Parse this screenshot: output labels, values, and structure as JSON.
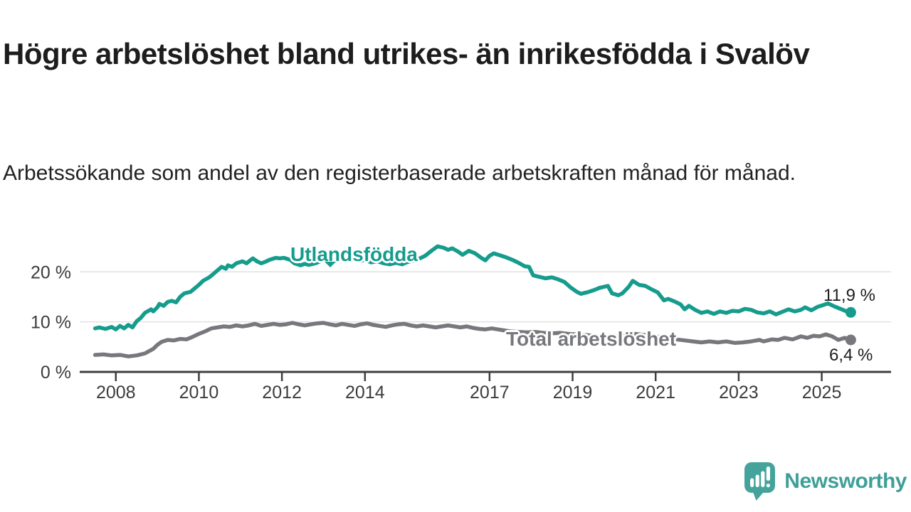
{
  "header": {
    "title": "Högre arbetslöshet bland utrikes- än inrikesfödda i Svalöv",
    "subtitle": "Arbetssökande som andel av den registerbaserade arbetskraften månad för månad."
  },
  "chart_data": {
    "type": "line",
    "title": "Högre arbetslöshet bland utrikes- än inrikesfödda i Svalöv",
    "xlabel": "",
    "ylabel": "Arbetssökande som andel av den registerbaserade arbetskraften",
    "xlim": [
      2007.13,
      2026.67
    ],
    "ylim": [
      0,
      27
    ],
    "grid": "horizontal",
    "grid_color": "#e1e1e1",
    "axis_color": "#3f3f3f",
    "axis_text_color": "#3c3c3c",
    "y_ticks": [
      {
        "value": 0,
        "label": "0 %"
      },
      {
        "value": 10,
        "label": "10 %"
      },
      {
        "value": 20,
        "label": "20 %"
      }
    ],
    "x_ticks": [
      {
        "value": 2008,
        "label": "2008"
      },
      {
        "value": 2010,
        "label": "2010"
      },
      {
        "value": 2012,
        "label": "2012"
      },
      {
        "value": 2014,
        "label": "2014"
      },
      {
        "value": 2017,
        "label": "2017"
      },
      {
        "value": 2019,
        "label": "2019"
      },
      {
        "value": 2021,
        "label": "2021"
      },
      {
        "value": 2023,
        "label": "2023"
      },
      {
        "value": 2025,
        "label": "2025"
      }
    ],
    "series": [
      {
        "name": "Utlandsfödda",
        "color": "#169c8d",
        "end_label": "11,9 %",
        "end_value": 11.9,
        "points": [
          [
            2007.5,
            8.7
          ],
          [
            2007.6,
            8.9
          ],
          [
            2007.75,
            8.6
          ],
          [
            2007.9,
            9.0
          ],
          [
            2008.0,
            8.5
          ],
          [
            2008.1,
            9.2
          ],
          [
            2008.2,
            8.7
          ],
          [
            2008.3,
            9.4
          ],
          [
            2008.4,
            8.9
          ],
          [
            2008.5,
            10.1
          ],
          [
            2008.6,
            10.8
          ],
          [
            2008.7,
            11.8
          ],
          [
            2008.85,
            12.5
          ],
          [
            2008.9,
            12.1
          ],
          [
            2009.0,
            12.9
          ],
          [
            2009.05,
            13.6
          ],
          [
            2009.15,
            13.2
          ],
          [
            2009.25,
            14.0
          ],
          [
            2009.35,
            14.2
          ],
          [
            2009.45,
            13.9
          ],
          [
            2009.55,
            15.0
          ],
          [
            2009.65,
            15.7
          ],
          [
            2009.8,
            16.0
          ],
          [
            2009.9,
            16.7
          ],
          [
            2010.0,
            17.4
          ],
          [
            2010.1,
            18.2
          ],
          [
            2010.25,
            18.9
          ],
          [
            2010.35,
            19.6
          ],
          [
            2010.45,
            20.3
          ],
          [
            2010.55,
            21.0
          ],
          [
            2010.65,
            20.6
          ],
          [
            2010.7,
            21.3
          ],
          [
            2010.8,
            21.0
          ],
          [
            2010.9,
            21.7
          ],
          [
            2011.05,
            22.1
          ],
          [
            2011.15,
            21.7
          ],
          [
            2011.25,
            22.4
          ],
          [
            2011.3,
            22.7
          ],
          [
            2011.4,
            22.1
          ],
          [
            2011.5,
            21.7
          ],
          [
            2011.6,
            22.0
          ],
          [
            2011.7,
            22.4
          ],
          [
            2011.85,
            22.8
          ],
          [
            2011.95,
            22.7
          ],
          [
            2012.05,
            22.8
          ],
          [
            2012.2,
            22.4
          ],
          [
            2012.3,
            21.7
          ],
          [
            2012.45,
            21.3
          ],
          [
            2012.55,
            21.6
          ],
          [
            2012.65,
            21.4
          ],
          [
            2012.8,
            21.7
          ],
          [
            2012.9,
            22.0
          ],
          [
            2013.0,
            22.3
          ],
          [
            2013.1,
            22.6
          ],
          [
            2013.2,
            22.9
          ],
          [
            2013.35,
            22.5
          ],
          [
            2013.5,
            22.7
          ],
          [
            2013.6,
            22.3
          ],
          [
            2013.75,
            22.5
          ],
          [
            2013.9,
            22.2
          ],
          [
            2014.0,
            22.4
          ],
          [
            2014.15,
            21.9
          ],
          [
            2014.3,
            22.1
          ],
          [
            2014.45,
            21.7
          ],
          [
            2014.6,
            21.5
          ],
          [
            2014.75,
            21.8
          ],
          [
            2014.9,
            21.5
          ],
          [
            2015.0,
            21.9
          ],
          [
            2015.15,
            22.2
          ],
          [
            2015.3,
            22.6
          ],
          [
            2015.45,
            23.2
          ],
          [
            2015.6,
            24.2
          ],
          [
            2015.75,
            25.1
          ],
          [
            2015.9,
            24.8
          ],
          [
            2016.0,
            24.4
          ],
          [
            2016.1,
            24.7
          ],
          [
            2016.25,
            24.0
          ],
          [
            2016.35,
            23.4
          ],
          [
            2016.5,
            24.2
          ],
          [
            2016.65,
            23.7
          ],
          [
            2016.8,
            22.8
          ],
          [
            2016.9,
            22.3
          ],
          [
            2017.0,
            23.2
          ],
          [
            2017.1,
            23.7
          ],
          [
            2017.25,
            23.3
          ],
          [
            2017.4,
            22.9
          ],
          [
            2017.55,
            22.4
          ],
          [
            2017.7,
            21.8
          ],
          [
            2017.85,
            21.1
          ],
          [
            2017.95,
            21.0
          ],
          [
            2018.05,
            19.3
          ],
          [
            2018.2,
            19.0
          ],
          [
            2018.35,
            18.7
          ],
          [
            2018.5,
            18.9
          ],
          [
            2018.65,
            18.5
          ],
          [
            2018.8,
            18.0
          ],
          [
            2018.95,
            16.9
          ],
          [
            2019.1,
            16.0
          ],
          [
            2019.2,
            15.6
          ],
          [
            2019.35,
            15.9
          ],
          [
            2019.5,
            16.3
          ],
          [
            2019.65,
            16.8
          ],
          [
            2019.85,
            17.2
          ],
          [
            2019.95,
            15.7
          ],
          [
            2020.1,
            15.3
          ],
          [
            2020.2,
            15.7
          ],
          [
            2020.35,
            17.0
          ],
          [
            2020.45,
            18.2
          ],
          [
            2020.6,
            17.4
          ],
          [
            2020.75,
            17.2
          ],
          [
            2020.9,
            16.5
          ],
          [
            2021.05,
            15.9
          ],
          [
            2021.2,
            14.3
          ],
          [
            2021.3,
            14.6
          ],
          [
            2021.45,
            14.1
          ],
          [
            2021.6,
            13.5
          ],
          [
            2021.7,
            12.5
          ],
          [
            2021.8,
            13.2
          ],
          [
            2021.95,
            12.4
          ],
          [
            2022.1,
            11.8
          ],
          [
            2022.25,
            12.1
          ],
          [
            2022.4,
            11.6
          ],
          [
            2022.55,
            12.1
          ],
          [
            2022.7,
            11.8
          ],
          [
            2022.85,
            12.2
          ],
          [
            2023.0,
            12.1
          ],
          [
            2023.15,
            12.6
          ],
          [
            2023.3,
            12.4
          ],
          [
            2023.45,
            11.9
          ],
          [
            2023.6,
            11.7
          ],
          [
            2023.75,
            12.1
          ],
          [
            2023.9,
            11.5
          ],
          [
            2024.05,
            12.0
          ],
          [
            2024.2,
            12.5
          ],
          [
            2024.35,
            12.1
          ],
          [
            2024.5,
            12.4
          ],
          [
            2024.6,
            12.9
          ],
          [
            2024.75,
            12.3
          ],
          [
            2024.9,
            13.0
          ],
          [
            2025.05,
            13.4
          ],
          [
            2025.15,
            13.7
          ],
          [
            2025.3,
            13.1
          ],
          [
            2025.45,
            12.6
          ],
          [
            2025.6,
            12.1
          ],
          [
            2025.7,
            11.9
          ]
        ]
      },
      {
        "name": "Total arbetslöshet",
        "color": "#77787c",
        "end_label": "6,4 %",
        "end_value": 6.4,
        "points": [
          [
            2007.5,
            3.4
          ],
          [
            2007.7,
            3.5
          ],
          [
            2007.9,
            3.3
          ],
          [
            2008.1,
            3.4
          ],
          [
            2008.3,
            3.1
          ],
          [
            2008.5,
            3.3
          ],
          [
            2008.7,
            3.7
          ],
          [
            2008.9,
            4.6
          ],
          [
            2009.0,
            5.4
          ],
          [
            2009.1,
            6.0
          ],
          [
            2009.25,
            6.4
          ],
          [
            2009.4,
            6.3
          ],
          [
            2009.55,
            6.6
          ],
          [
            2009.7,
            6.5
          ],
          [
            2009.85,
            7.0
          ],
          [
            2010.0,
            7.6
          ],
          [
            2010.15,
            8.1
          ],
          [
            2010.3,
            8.7
          ],
          [
            2010.45,
            8.9
          ],
          [
            2010.6,
            9.1
          ],
          [
            2010.75,
            9.0
          ],
          [
            2010.9,
            9.3
          ],
          [
            2011.05,
            9.1
          ],
          [
            2011.2,
            9.3
          ],
          [
            2011.35,
            9.6
          ],
          [
            2011.5,
            9.2
          ],
          [
            2011.65,
            9.4
          ],
          [
            2011.8,
            9.6
          ],
          [
            2011.95,
            9.4
          ],
          [
            2012.1,
            9.5
          ],
          [
            2012.25,
            9.8
          ],
          [
            2012.4,
            9.5
          ],
          [
            2012.55,
            9.3
          ],
          [
            2012.7,
            9.5
          ],
          [
            2012.85,
            9.7
          ],
          [
            2013.0,
            9.8
          ],
          [
            2013.15,
            9.5
          ],
          [
            2013.3,
            9.3
          ],
          [
            2013.45,
            9.6
          ],
          [
            2013.6,
            9.4
          ],
          [
            2013.75,
            9.2
          ],
          [
            2013.9,
            9.5
          ],
          [
            2014.05,
            9.7
          ],
          [
            2014.2,
            9.4
          ],
          [
            2014.35,
            9.2
          ],
          [
            2014.5,
            9.0
          ],
          [
            2014.65,
            9.3
          ],
          [
            2014.8,
            9.5
          ],
          [
            2014.95,
            9.6
          ],
          [
            2015.1,
            9.3
          ],
          [
            2015.25,
            9.1
          ],
          [
            2015.4,
            9.3
          ],
          [
            2015.55,
            9.1
          ],
          [
            2015.7,
            8.9
          ],
          [
            2015.85,
            9.1
          ],
          [
            2016.0,
            9.3
          ],
          [
            2016.15,
            9.1
          ],
          [
            2016.3,
            8.9
          ],
          [
            2016.45,
            9.1
          ],
          [
            2016.6,
            8.8
          ],
          [
            2016.75,
            8.6
          ],
          [
            2016.9,
            8.5
          ],
          [
            2017.05,
            8.7
          ],
          [
            2017.2,
            8.5
          ],
          [
            2017.35,
            8.3
          ],
          [
            2017.5,
            8.1
          ],
          [
            2017.7,
            8.0
          ],
          [
            2017.9,
            7.9
          ],
          [
            2018.1,
            8.0
          ],
          [
            2018.3,
            7.8
          ],
          [
            2018.5,
            7.7
          ],
          [
            2018.7,
            7.8
          ],
          [
            2018.9,
            7.6
          ],
          [
            2019.1,
            7.5
          ],
          [
            2019.3,
            7.4
          ],
          [
            2019.5,
            7.2
          ],
          [
            2019.7,
            7.1
          ],
          [
            2019.9,
            7.0
          ],
          [
            2020.1,
            7.1
          ],
          [
            2020.3,
            7.4
          ],
          [
            2020.5,
            7.6
          ],
          [
            2020.7,
            7.4
          ],
          [
            2020.9,
            7.2
          ],
          [
            2021.1,
            7.0
          ],
          [
            2021.3,
            6.8
          ],
          [
            2021.5,
            6.5
          ],
          [
            2021.7,
            6.3
          ],
          [
            2021.9,
            6.1
          ],
          [
            2022.1,
            5.9
          ],
          [
            2022.3,
            6.1
          ],
          [
            2022.5,
            5.9
          ],
          [
            2022.7,
            6.1
          ],
          [
            2022.9,
            5.8
          ],
          [
            2023.1,
            5.9
          ],
          [
            2023.3,
            6.1
          ],
          [
            2023.5,
            6.4
          ],
          [
            2023.6,
            6.1
          ],
          [
            2023.8,
            6.5
          ],
          [
            2023.95,
            6.4
          ],
          [
            2024.1,
            6.8
          ],
          [
            2024.3,
            6.5
          ],
          [
            2024.5,
            7.1
          ],
          [
            2024.65,
            6.8
          ],
          [
            2024.8,
            7.2
          ],
          [
            2024.95,
            7.1
          ],
          [
            2025.1,
            7.5
          ],
          [
            2025.25,
            7.1
          ],
          [
            2025.4,
            6.4
          ],
          [
            2025.55,
            6.8
          ],
          [
            2025.7,
            6.4
          ]
        ]
      }
    ]
  },
  "branding": {
    "logo_text": "Newsworthy",
    "text_color": "#3f9f98",
    "icon_color": "#46a39c",
    "icon": "speech-bubble-bar-chart-icon"
  }
}
